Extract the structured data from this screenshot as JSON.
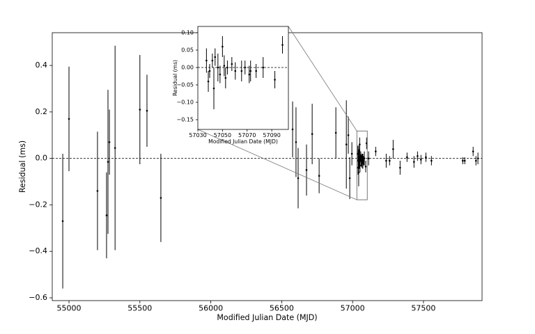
{
  "chart_data": [
    {
      "type": "scatter",
      "xlabel": "Modified Julian Date (MJD)",
      "ylabel": "Residual (ms)",
      "xlim": [
        54882,
        57913
      ],
      "ylim": [
        -0.612,
        0.541
      ],
      "xticks": [
        55000,
        55500,
        56000,
        56500,
        57000,
        57500
      ],
      "yticks": [
        {
          "value": -0.6,
          "label": "−0.6"
        },
        {
          "value": -0.4,
          "label": "−0.4"
        },
        {
          "value": -0.2,
          "label": "−0.2"
        },
        {
          "value": 0,
          "label": "0.0"
        },
        0.2,
        0.4
      ],
      "hline": 0,
      "color": "#000000",
      "x": [
        54956,
        55000,
        55201,
        55265,
        55275,
        55285,
        55325,
        55500,
        55550,
        55648,
        56577,
        56601,
        56616,
        56675,
        56715,
        56764,
        56882,
        56956,
        56970,
        56980,
        56995,
        57037,
        57038.5,
        57039.6,
        57041.8,
        57043,
        57044,
        57046.3,
        57048,
        57050,
        57051.4,
        57052.5,
        57054,
        57057.6,
        57060.4,
        57065.5,
        57068.3,
        57071.7,
        57072.8,
        57077.3,
        57083,
        57092.5,
        57098.7,
        57113,
        57163,
        57237,
        57261,
        57286,
        57335,
        57384,
        57433,
        57458,
        57482,
        57517,
        57556,
        57777,
        57791,
        57850,
        57870,
        57884
      ],
      "values": [
        -0.27,
        0.17,
        -0.14,
        -0.245,
        -0.015,
        0.07,
        0.045,
        0.21,
        0.205,
        -0.17,
        0.125,
        0.07,
        -0.085,
        -0.05,
        0.105,
        -0.075,
        0.11,
        0.06,
        0.1,
        -0.085,
        0.02,
        0.02,
        -0.04,
        -0.01,
        0.02,
        -0.06,
        0.03,
        0.0,
        -0.02,
        0.06,
        0.005,
        -0.03,
        0.0,
        0.01,
        -0.01,
        -0.01,
        0.0,
        -0.02,
        -0.01,
        -0.01,
        0.0,
        -0.035,
        0.065,
        0.0,
        0.03,
        -0.01,
        -0.01,
        0.04,
        -0.04,
        0.005,
        -0.015,
        0.01,
        -0.005,
        0.005,
        -0.01,
        -0.01,
        -0.01,
        0.03,
        -0.01,
        0.0
      ],
      "errors": [
        0.29,
        0.225,
        0.255,
        0.185,
        0.31,
        0.14,
        0.44,
        0.235,
        0.155,
        0.19,
        0.12,
        0.15,
        0.13,
        0.11,
        0.13,
        0.075,
        0.11,
        0.19,
        0.08,
        0.09,
        0.05,
        0.035,
        0.03,
        0.02,
        0.02,
        0.06,
        0.025,
        0.04,
        0.025,
        0.03,
        0.03,
        0.03,
        0.02,
        0.02,
        0.025,
        0.03,
        0.02,
        0.025,
        0.03,
        0.02,
        0.03,
        0.025,
        0.025,
        0.03,
        0.02,
        0.03,
        0.02,
        0.04,
        0.03,
        0.02,
        0.025,
        0.02,
        0.02,
        0.02,
        0.02,
        0.015,
        0.015,
        0.02,
        0.02,
        0.025
      ]
    },
    {
      "type": "scatter",
      "xlabel": "Modified Julian Date (MJD)",
      "ylabel": "Residual (ms)",
      "xlim": [
        57030,
        57103.5
      ],
      "ylim": [
        -0.178,
        0.118
      ],
      "xticks": [
        57030,
        57050,
        57070,
        57090
      ],
      "yticks": [
        {
          "value": -0.15,
          "label": "−0.15"
        },
        {
          "value": -0.1,
          "label": "−0.10"
        },
        {
          "value": -0.05,
          "label": "−0.05"
        },
        {
          "value": 0,
          "label": "0.00"
        },
        {
          "value": 0.05,
          "label": "0.05"
        },
        {
          "value": 0.1,
          "label": "0.10"
        }
      ],
      "hline": 0,
      "color": "#000000",
      "x": [
        57037,
        57038.5,
        57039.6,
        57041.8,
        57043,
        57044,
        57046.3,
        57048,
        57050,
        57051.4,
        57052.5,
        57054,
        57057.6,
        57060.4,
        57065.5,
        57068.3,
        57071.7,
        57072.8,
        57077.3,
        57083,
        57092.5,
        57098.7
      ],
      "values": [
        0.02,
        -0.04,
        -0.01,
        0.02,
        -0.06,
        0.03,
        0.0,
        -0.02,
        0.06,
        0.005,
        -0.03,
        0.0,
        0.01,
        -0.01,
        -0.01,
        0.0,
        -0.02,
        -0.01,
        -0.01,
        0.0,
        -0.035,
        0.065
      ],
      "errors": [
        0.035,
        0.03,
        0.02,
        0.02,
        0.06,
        0.025,
        0.04,
        0.025,
        0.03,
        0.03,
        0.03,
        0.02,
        0.02,
        0.025,
        0.03,
        0.02,
        0.025,
        0.03,
        0.02,
        0.03,
        0.025,
        0.025
      ]
    }
  ]
}
